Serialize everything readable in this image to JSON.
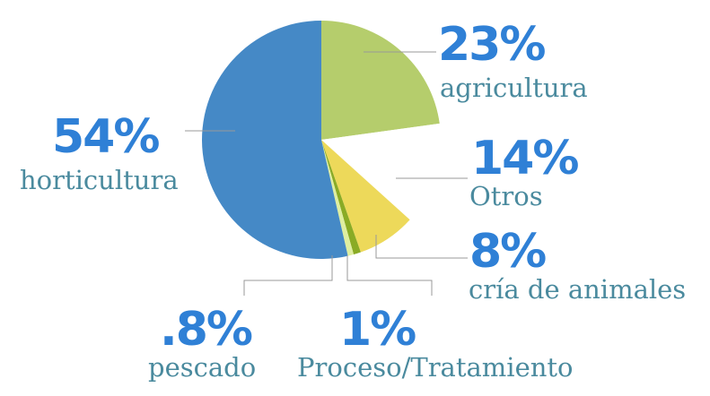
{
  "chart_data": {
    "type": "pie",
    "title": "",
    "slices": [
      {
        "key": "agricultura",
        "percent": 23,
        "percent_label": "23%",
        "label": "agricultura",
        "color": "#b5cd6c"
      },
      {
        "key": "otros",
        "percent": 14,
        "percent_label": "14%",
        "label": "Otros",
        "color": "#ffffff"
      },
      {
        "key": "cria",
        "percent": 8,
        "percent_label": "8%",
        "label": "cría de animales",
        "color": "#edd95a"
      },
      {
        "key": "proceso",
        "percent": 1,
        "percent_label": "1%",
        "label": "Proceso/Tratamiento",
        "color": "#8aab25"
      },
      {
        "key": "pescado",
        "percent": 0.8,
        "percent_label": ".8%",
        "label": "pescado",
        "color": "#dfeea0"
      },
      {
        "key": "horticultura",
        "percent": 54,
        "percent_label": "54%",
        "label": "horticultura",
        "color": "#4589c6"
      }
    ]
  },
  "colors": {
    "percent_text": "#2f80d6",
    "name_text": "#4a8a9e",
    "leader_line": "#999999"
  }
}
